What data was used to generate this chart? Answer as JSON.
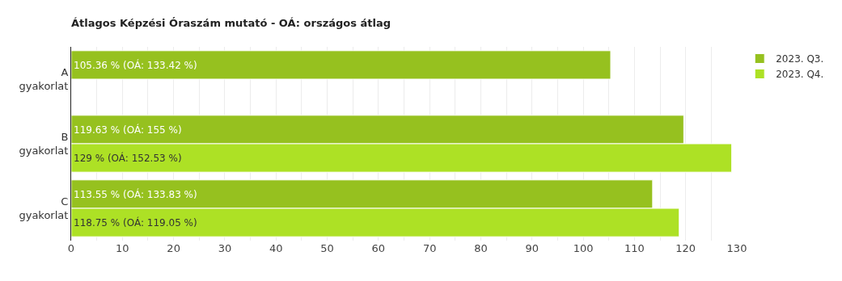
{
  "chart_data": {
    "type": "bar",
    "orientation": "horizontal",
    "title": "Átlagos Képzési Óraszám mutató - OÁ: országos átlag",
    "categories": [
      "A gyakorlat",
      "B gyakorlat",
      "C gyakorlat"
    ],
    "series": [
      {
        "name": "2023. Q3.",
        "color": "#96c11f",
        "values": [
          105.36,
          119.63,
          113.55
        ],
        "value_labels": [
          "105.36 % (OÁ: 133.42 %)",
          "119.63 % (OÁ: 155 %)",
          "113.55 % (OÁ: 133.83 %)"
        ]
      },
      {
        "name": "2023. Q4.",
        "color": "#ade125",
        "values": [
          null,
          129,
          118.75
        ],
        "value_labels": [
          null,
          "129 % (OÁ: 152.53 %)",
          "118.75 % (OÁ: 119.05 %)"
        ]
      }
    ],
    "xlim": [
      0,
      130
    ],
    "xticks": [
      0,
      {
        "value": 5,
        "label": null
      },
      10,
      {
        "value": 15,
        "label": null
      },
      20,
      {
        "value": 25,
        "label": null
      },
      30,
      {
        "value": 35,
        "label": null
      },
      40,
      {
        "value": 45,
        "label": null
      },
      50,
      {
        "value": 55,
        "label": null
      },
      60,
      {
        "value": 65,
        "label": null
      },
      70,
      {
        "value": 75,
        "label": null
      },
      80,
      {
        "value": 85,
        "label": null
      },
      90,
      {
        "value": 95,
        "label": null
      },
      100,
      {
        "value": 105,
        "label": null
      },
      110,
      {
        "value": 115,
        "label": null
      },
      120,
      {
        "value": 125,
        "label": null
      },
      130
    ],
    "grid": "x",
    "legend": "top right"
  }
}
